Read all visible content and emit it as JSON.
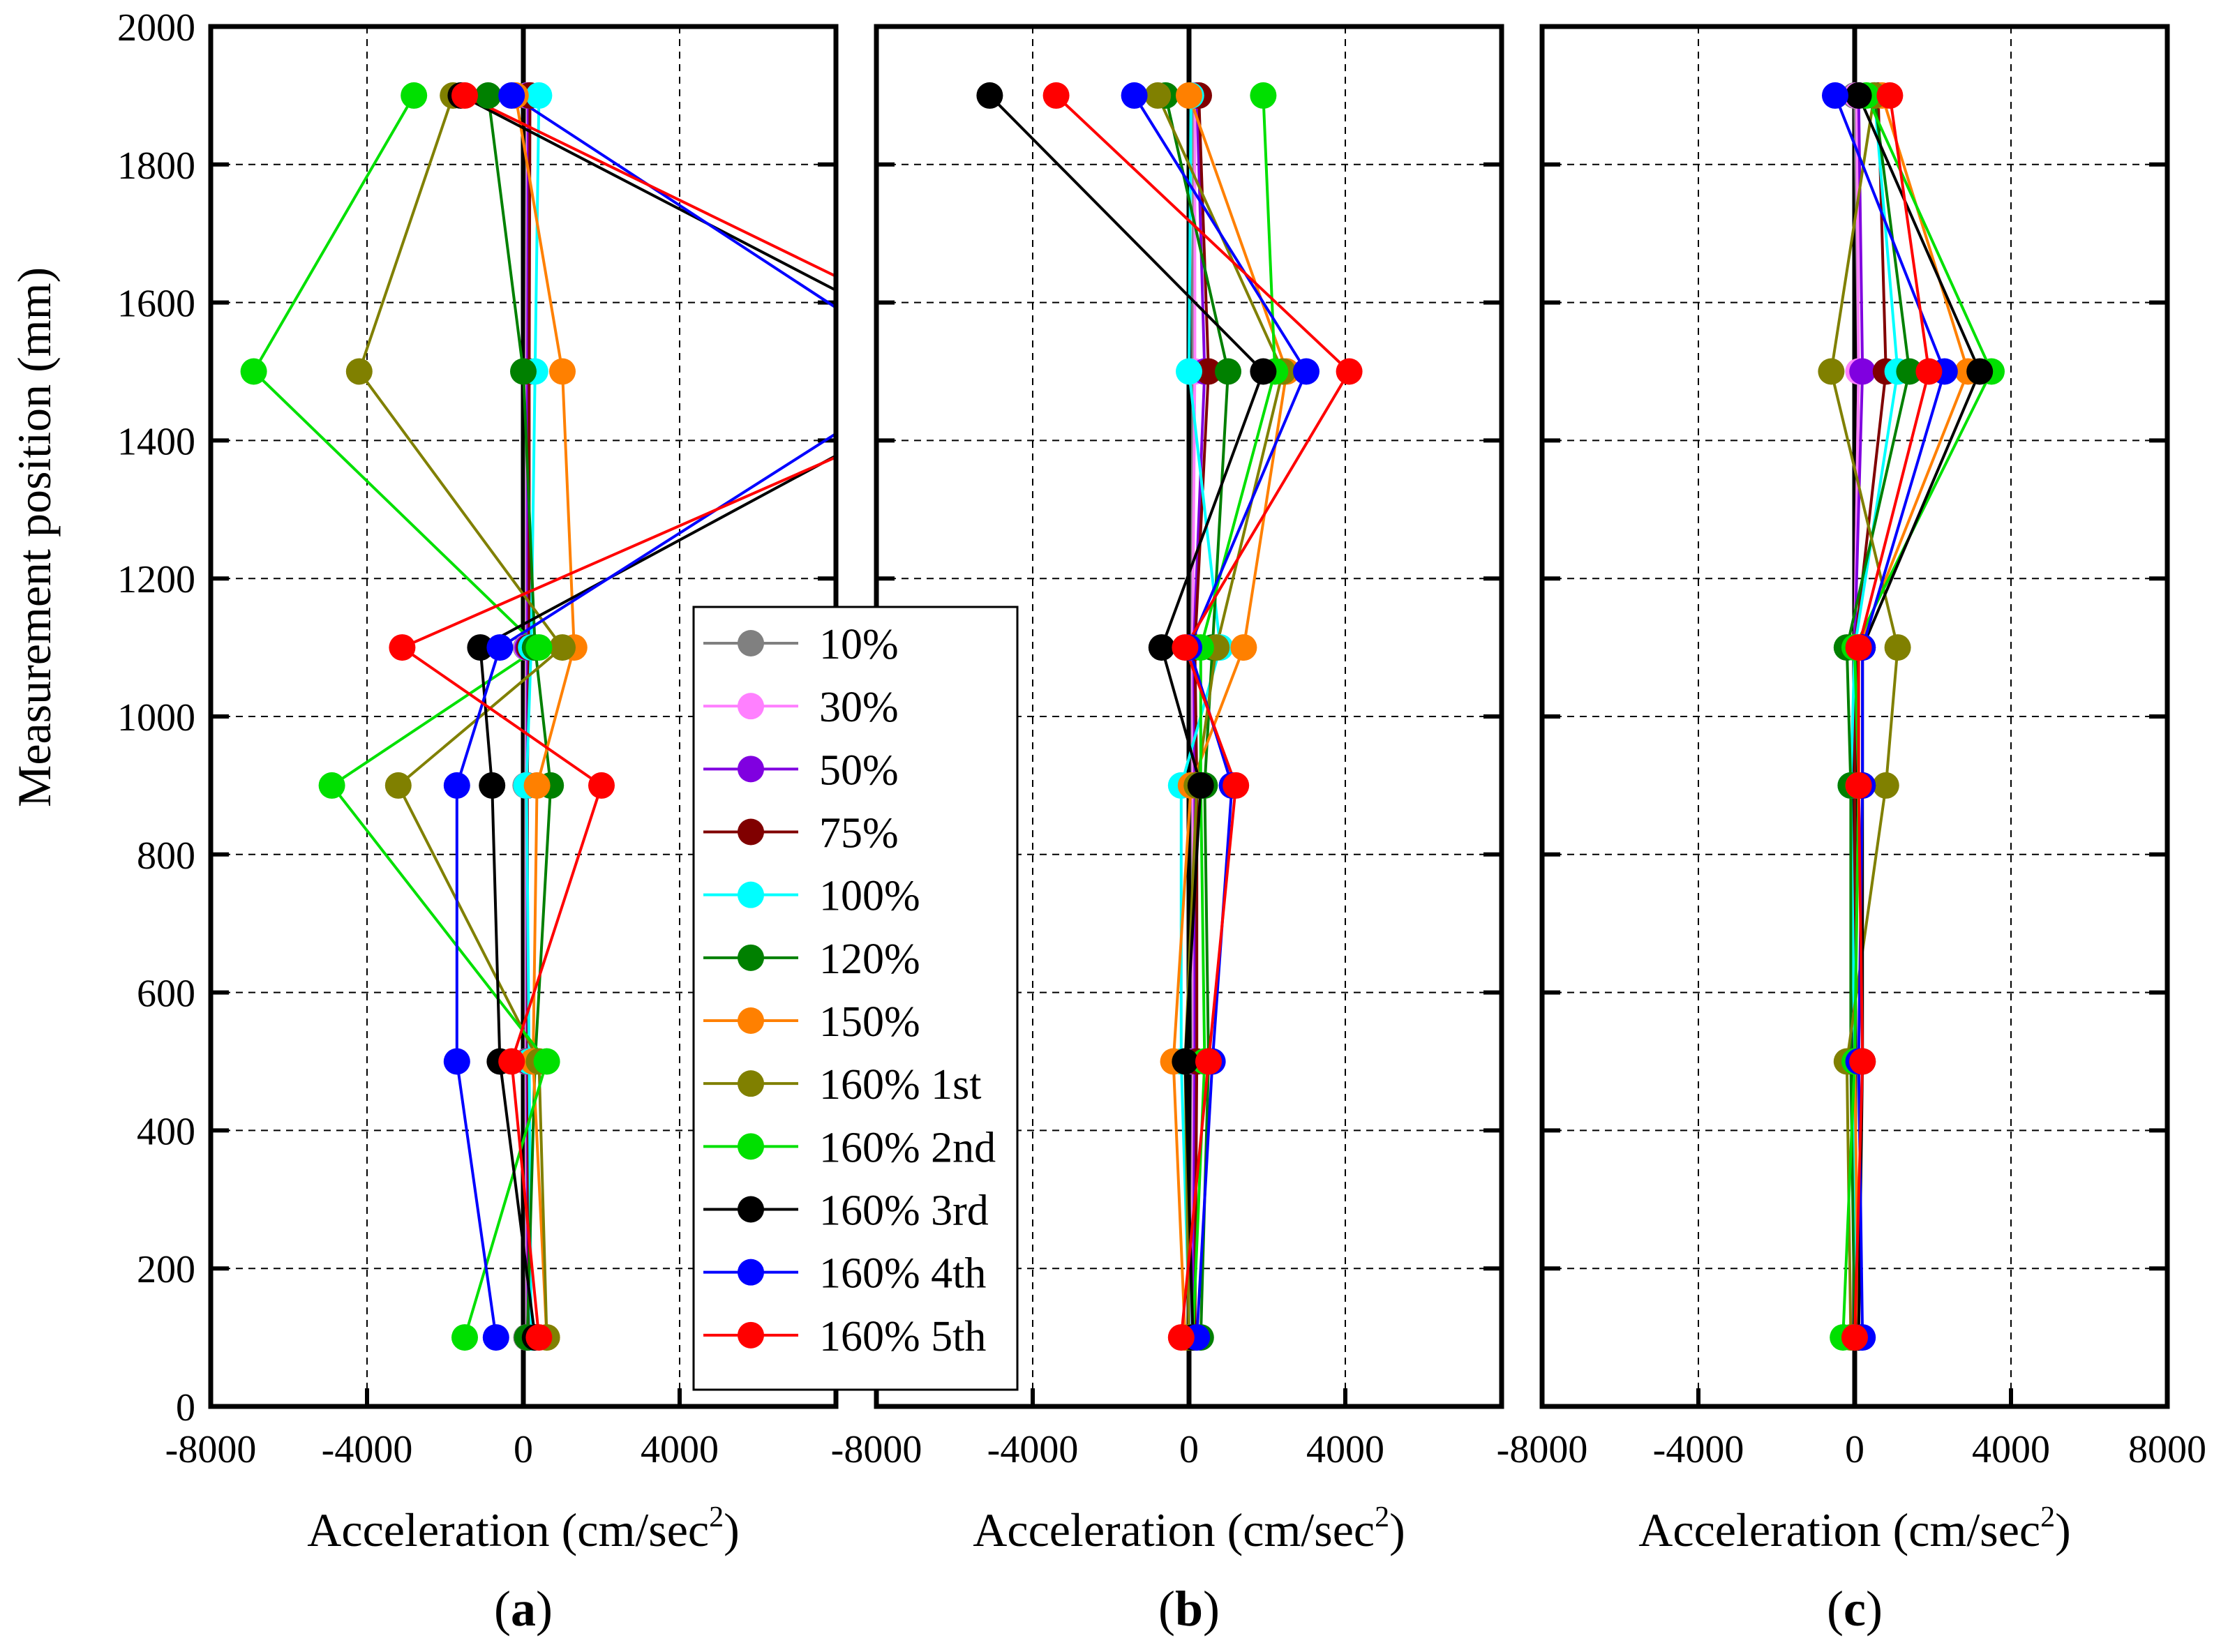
{
  "figure": {
    "shared_ylabel": "Measurement position (mm)",
    "x_axis_title": "Acceleration (cm/sec",
    "x_axis_sup": "2",
    "x_axis_close": ")"
  },
  "legend": {
    "entries": [
      "10%",
      "30%",
      "50%",
      "75%",
      "100%",
      "120%",
      "150%",
      "160% 1st",
      "160% 2nd",
      "160% 3rd",
      "160% 4th",
      "160% 5th"
    ],
    "colors": [
      "#808080",
      "#ff80ff",
      "#8000e0",
      "#800000",
      "#00ffff",
      "#008000",
      "#ff8000",
      "#808000",
      "#00e000",
      "#000000",
      "#0000ff",
      "#ff0000"
    ]
  },
  "chart_data": [
    {
      "type": "line",
      "panel_label": "a",
      "xlabel": "Acceleration (cm/sec2)",
      "ylabel": "Measurement position (mm)",
      "xlim": [
        -8000,
        8000
      ],
      "ylim": [
        0,
        2000
      ],
      "x_ticks": [
        "-8000",
        "-4000",
        "0",
        "4000"
      ],
      "y_ticks": [
        "0",
        "200",
        "400",
        "600",
        "800",
        "1000",
        "1200",
        "1400",
        "1600",
        "1800",
        "2000"
      ],
      "grid": true,
      "y_levels": [
        100,
        500,
        900,
        1100,
        1500,
        1900
      ],
      "series": [
        {
          "name": "10%",
          "x": [
            80,
            60,
            60,
            70,
            70,
            90
          ]
        },
        {
          "name": "30%",
          "x": [
            100,
            80,
            80,
            90,
            90,
            110
          ]
        },
        {
          "name": "50%",
          "x": [
            120,
            100,
            100,
            110,
            110,
            130
          ]
        },
        {
          "name": "75%",
          "x": [
            150,
            120,
            100,
            150,
            150,
            170
          ]
        },
        {
          "name": "100%",
          "x": [
            200,
            150,
            80,
            200,
            300,
            400
          ]
        },
        {
          "name": "120%",
          "x": [
            100,
            300,
            700,
            300,
            0,
            -900
          ]
        },
        {
          "name": "150%",
          "x": [
            600,
            250,
            350,
            1300,
            1000,
            -200
          ]
        },
        {
          "name": "160% 1st",
          "x": [
            600,
            400,
            -3200,
            1000,
            -4200,
            -1800
          ]
        },
        {
          "name": "160% 2nd",
          "x": [
            -1500,
            600,
            -4900,
            400,
            -6900,
            -2800
          ]
        },
        {
          "name": "160% 3rd",
          "x": [
            300,
            -600,
            -800,
            -1100,
            12000,
            -1600
          ]
        },
        {
          "name": "160% 4th",
          "x": [
            -700,
            -1700,
            -1700,
            -600,
            10500,
            -300
          ]
        },
        {
          "name": "160% 5th",
          "x": [
            400,
            -300,
            2000,
            -3100,
            13000,
            -1500
          ]
        }
      ]
    },
    {
      "type": "line",
      "panel_label": "b",
      "xlabel": "Acceleration (cm/sec2)",
      "xlim": [
        -8000,
        8000
      ],
      "ylim": [
        0,
        2000
      ],
      "x_ticks": [
        "-8000",
        "-4000",
        "0",
        "4000"
      ],
      "grid": true,
      "y_levels": [
        100,
        500,
        900,
        1100,
        1500,
        1900
      ],
      "series": [
        {
          "name": "10%",
          "x": [
            50,
            100,
            80,
            70,
            100,
            120
          ]
        },
        {
          "name": "30%",
          "x": [
            70,
            120,
            100,
            90,
            150,
            150
          ]
        },
        {
          "name": "50%",
          "x": [
            100,
            150,
            150,
            120,
            400,
            200
          ]
        },
        {
          "name": "75%",
          "x": [
            150,
            200,
            200,
            150,
            500,
            250
          ]
        },
        {
          "name": "100%",
          "x": [
            20,
            -200,
            -200,
            800,
            0,
            50
          ]
        },
        {
          "name": "120%",
          "x": [
            300,
            500,
            400,
            600,
            1000,
            -600
          ]
        },
        {
          "name": "150%",
          "x": [
            -100,
            -400,
            50,
            1400,
            2500,
            0
          ]
        },
        {
          "name": "160% 1st",
          "x": [
            0,
            -100,
            200,
            700,
            2400,
            -800
          ]
        },
        {
          "name": "160% 2nd",
          "x": [
            100,
            400,
            300,
            300,
            2200,
            1900
          ]
        },
        {
          "name": "160% 3rd",
          "x": [
            100,
            -100,
            300,
            -700,
            1900,
            -5100
          ]
        },
        {
          "name": "160% 4th",
          "x": [
            200,
            600,
            1100,
            0,
            3000,
            -1400
          ]
        },
        {
          "name": "160% 5th",
          "x": [
            -200,
            500,
            1200,
            -100,
            4100,
            -3400
          ]
        }
      ]
    },
    {
      "type": "line",
      "panel_label": "c",
      "xlabel": "Acceleration (cm/sec2)",
      "xlim": [
        -8000,
        8000
      ],
      "ylim": [
        0,
        2000
      ],
      "x_ticks": [
        "-8000",
        "-4000",
        "0",
        "4000",
        "8000"
      ],
      "grid": true,
      "y_levels": [
        100,
        500,
        900,
        1100,
        1500,
        1900
      ],
      "series": [
        {
          "name": "10%",
          "x": [
            0,
            0,
            0,
            0,
            100,
            0
          ]
        },
        {
          "name": "30%",
          "x": [
            0,
            0,
            0,
            0,
            100,
            50
          ]
        },
        {
          "name": "50%",
          "x": [
            50,
            0,
            0,
            0,
            200,
            100
          ]
        },
        {
          "name": "75%",
          "x": [
            50,
            0,
            0,
            0,
            800,
            600
          ]
        },
        {
          "name": "100%",
          "x": [
            0,
            0,
            -100,
            0,
            1100,
            500
          ]
        },
        {
          "name": "120%",
          "x": [
            0,
            -100,
            -100,
            -200,
            1400,
            500
          ]
        },
        {
          "name": "150%",
          "x": [
            100,
            0,
            100,
            100,
            2900,
            700
          ]
        },
        {
          "name": "160% 1st",
          "x": [
            -100,
            -200,
            800,
            1100,
            -600,
            500
          ]
        },
        {
          "name": "160% 2nd",
          "x": [
            -300,
            0,
            100,
            0,
            3500,
            300
          ]
        },
        {
          "name": "160% 3rd",
          "x": [
            100,
            200,
            200,
            200,
            3200,
            100
          ]
        },
        {
          "name": "160% 4th",
          "x": [
            200,
            100,
            200,
            200,
            2300,
            -500
          ]
        },
        {
          "name": "160% 5th",
          "x": [
            0,
            200,
            100,
            100,
            1900,
            900
          ]
        }
      ]
    }
  ]
}
